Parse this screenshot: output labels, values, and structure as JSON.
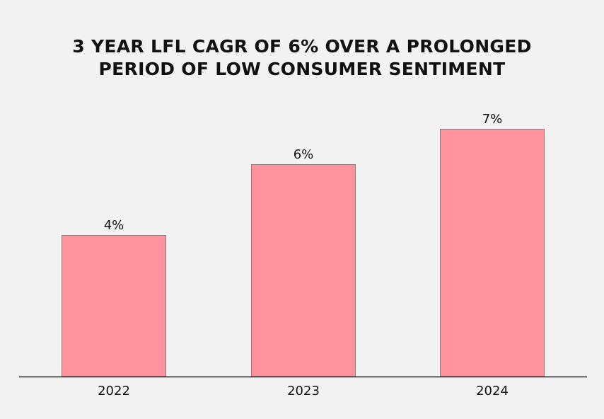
{
  "chart_data": {
    "type": "bar",
    "title_lines": [
      "3 YEAR LFL CAGR OF 6% OVER A PROLONGED",
      "PERIOD OF LOW CONSUMER SENTIMENT"
    ],
    "categories": [
      "2022",
      "2023",
      "2024"
    ],
    "values": [
      4,
      6,
      7
    ],
    "data_labels": [
      "4%",
      "6%",
      "7%"
    ],
    "xlabel": "",
    "ylabel": "",
    "ylim": [
      0,
      7
    ],
    "grid": false,
    "legend": "none",
    "bar_color": "#ff929d",
    "bar_edge_color": "#8c7a7c",
    "axis_color": "#222222",
    "text_color": "#111111"
  }
}
